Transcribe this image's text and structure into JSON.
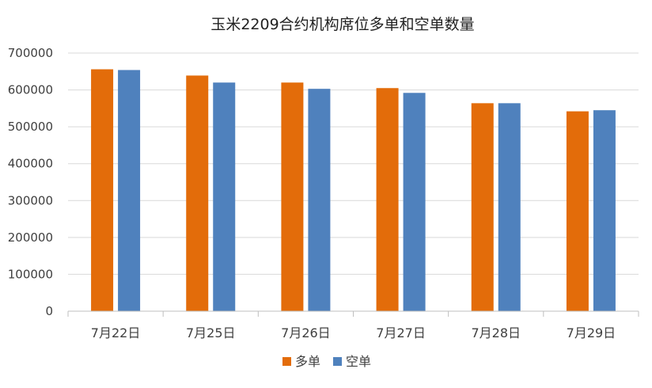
{
  "chart_data": {
    "type": "bar",
    "title": "玉米2209合约机构席位多单和空单数量",
    "xlabel": "",
    "ylabel": "",
    "categories": [
      "7月22日",
      "7月25日",
      "7月26日",
      "7月27日",
      "7月28日",
      "7月29日"
    ],
    "series": [
      {
        "name": "多单",
        "color": "#E36C0A",
        "values": [
          656000,
          639000,
          620000,
          605000,
          564000,
          542000
        ]
      },
      {
        "name": "空单",
        "color": "#4F81BD",
        "values": [
          654000,
          620000,
          603000,
          592000,
          564000,
          545000
        ]
      }
    ],
    "ylim": [
      0,
      700000
    ],
    "yticks": [
      0,
      100000,
      200000,
      300000,
      400000,
      500000,
      600000,
      700000
    ],
    "grid": true,
    "legend_position": "bottom"
  }
}
